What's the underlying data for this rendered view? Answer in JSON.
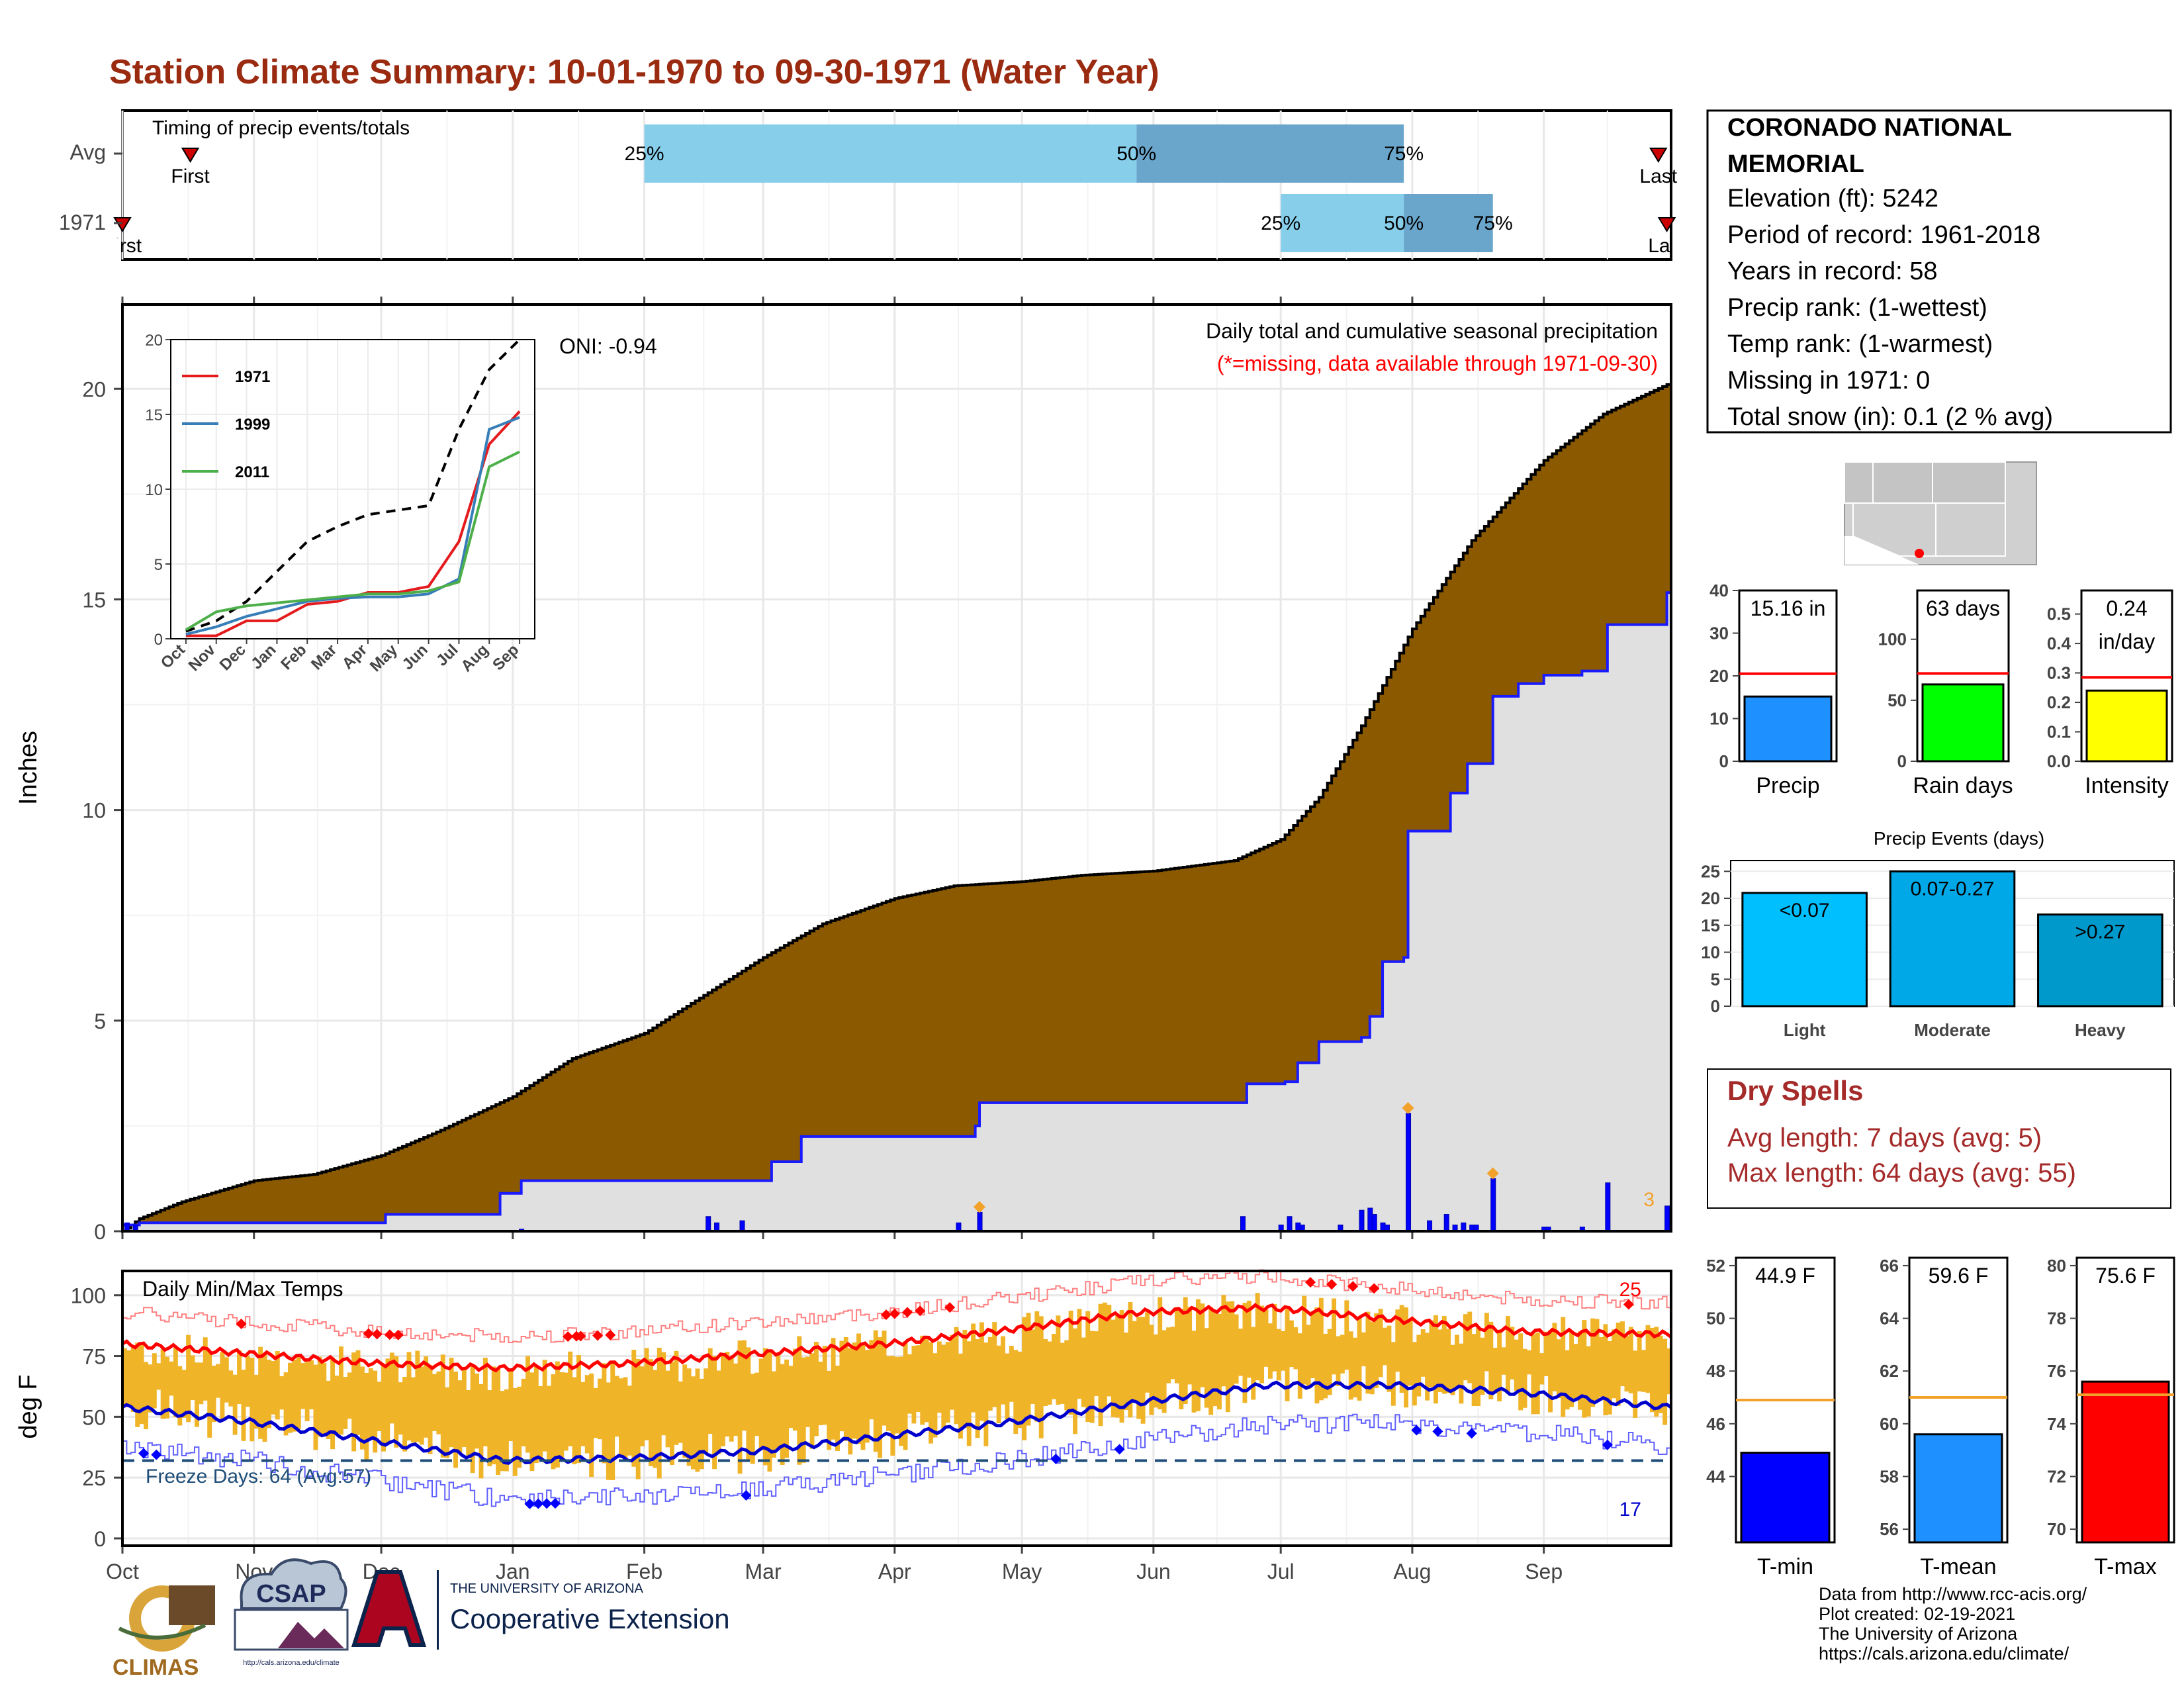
{
  "page": {
    "title": "Station Climate Summary: 10-01-1970 to 09-30-1971 (Water Year)",
    "title_color": "#9a2a10"
  },
  "months": [
    "Oct",
    "Nov",
    "Dec",
    "Jan",
    "Feb",
    "Mar",
    "Apr",
    "May",
    "Jun",
    "Jul",
    "Aug",
    "Sep"
  ],
  "timing": {
    "label": "Timing of precip events/totals",
    "rows": [
      {
        "name": "Avg",
        "first_date": "1970-10-17",
        "last_date": "1971-09-28",
        "first_label": "First",
        "last_label": "Last",
        "p25_date": "1971-02-01",
        "p50_date": "1971-05-28",
        "p75_date": "1971-07-30",
        "p25_label": "25%",
        "p50_label": "50%",
        "p75_label": "75%"
      },
      {
        "name": "1971",
        "first_date": "1970-10-01",
        "last_date": "1971-09-30",
        "first_label": "First",
        "last_label": "Last",
        "p25_date": "1971-07-01",
        "p50_date": "1971-07-30",
        "p75_date": "1971-08-20",
        "p25_label": "25%",
        "p50_label": "50%",
        "p75_label": "75%"
      }
    ],
    "colors": {
      "light": "#87ceeb",
      "dark": "#6aa6cc",
      "marker": "#cc0000"
    }
  },
  "chart_data": [
    {
      "type": "area",
      "panel": "precip",
      "title": "Daily total and cumulative seasonal precipitation",
      "subtitle": "(*=missing, data available through 1971-09-30)",
      "ylabel": "Inches",
      "ylim": [
        0,
        22
      ],
      "yticks": [
        0,
        5,
        10,
        15,
        20
      ],
      "oni_label": "ONI: -0.94",
      "extreme_count_label": "3",
      "series": [
        {
          "name": "Average cumulative",
          "color": "#8b5a00",
          "points": [
            [
              "1970-10-01",
              0
            ],
            [
              "1970-10-05",
              0.3
            ],
            [
              "1970-10-15",
              0.7
            ],
            [
              "1970-11-01",
              1.2
            ],
            [
              "1970-11-15",
              1.35
            ],
            [
              "1970-12-01",
              1.8
            ],
            [
              "1970-12-15",
              2.4
            ],
            [
              "1971-01-01",
              3.2
            ],
            [
              "1971-01-15",
              4.1
            ],
            [
              "1971-02-01",
              4.7
            ],
            [
              "1971-02-15",
              5.6
            ],
            [
              "1971-03-01",
              6.5
            ],
            [
              "1971-03-15",
              7.3
            ],
            [
              "1971-04-01",
              7.9
            ],
            [
              "1971-04-15",
              8.2
            ],
            [
              "1971-05-01",
              8.3
            ],
            [
              "1971-05-15",
              8.45
            ],
            [
              "1971-06-01",
              8.55
            ],
            [
              "1971-06-20",
              8.8
            ],
            [
              "1971-07-01",
              9.3
            ],
            [
              "1971-07-10",
              10.3
            ],
            [
              "1971-07-20",
              12.0
            ],
            [
              "1971-08-01",
              14.3
            ],
            [
              "1971-08-15",
              16.4
            ],
            [
              "1971-09-01",
              18.3
            ],
            [
              "1971-09-15",
              19.4
            ],
            [
              "1971-09-30",
              20.1
            ]
          ]
        },
        {
          "name": "1971 cumulative",
          "color": "#1a1aff",
          "points": [
            [
              "1970-10-01",
              0.15
            ],
            [
              "1970-10-05",
              0.2
            ],
            [
              "1970-12-01",
              0.2
            ],
            [
              "1970-12-02",
              0.4
            ],
            [
              "1970-12-28",
              0.4
            ],
            [
              "1970-12-29",
              0.9
            ],
            [
              "1971-01-03",
              1.2
            ],
            [
              "1971-03-01",
              1.2
            ],
            [
              "1971-03-03",
              1.65
            ],
            [
              "1971-03-10",
              2.25
            ],
            [
              "1971-04-20",
              2.5
            ],
            [
              "1971-04-21",
              3.05
            ],
            [
              "1971-06-22",
              3.05
            ],
            [
              "1971-06-23",
              3.5
            ],
            [
              "1971-07-02",
              3.55
            ],
            [
              "1971-07-05",
              4.0
            ],
            [
              "1971-07-10",
              4.5
            ],
            [
              "1971-07-20",
              4.6
            ],
            [
              "1971-07-22",
              5.1
            ],
            [
              "1971-07-25",
              6.4
            ],
            [
              "1971-07-30",
              6.5
            ],
            [
              "1971-07-31",
              9.5
            ],
            [
              "1971-08-10",
              10.4
            ],
            [
              "1971-08-14",
              11.1
            ],
            [
              "1971-08-20",
              12.7
            ],
            [
              "1971-08-26",
              13.0
            ],
            [
              "1971-09-01",
              13.2
            ],
            [
              "1971-09-10",
              13.3
            ],
            [
              "1971-09-16",
              14.4
            ],
            [
              "1971-09-29",
              14.4
            ],
            [
              "1971-09-30",
              15.16
            ]
          ]
        }
      ],
      "daily_bars": [
        [
          "1970-10-02",
          0.2
        ],
        [
          "1970-10-04",
          0.15
        ],
        [
          "1971-01-03",
          0.05
        ],
        [
          "1971-02-16",
          0.35
        ],
        [
          "1971-02-18",
          0.2
        ],
        [
          "1971-02-24",
          0.25
        ],
        [
          "1971-04-16",
          0.2
        ],
        [
          "1971-04-21",
          0.45
        ],
        [
          "1971-06-22",
          0.35
        ],
        [
          "1971-07-01",
          0.15
        ],
        [
          "1971-07-03",
          0.35
        ],
        [
          "1971-07-05",
          0.2
        ],
        [
          "1971-07-06",
          0.15
        ],
        [
          "1971-07-15",
          0.15
        ],
        [
          "1971-07-20",
          0.5
        ],
        [
          "1971-07-22",
          0.55
        ],
        [
          "1971-07-23",
          0.4
        ],
        [
          "1971-07-25",
          0.2
        ],
        [
          "1971-07-26",
          0.15
        ],
        [
          "1971-07-31",
          2.8
        ],
        [
          "1971-08-05",
          0.25
        ],
        [
          "1971-08-09",
          0.4
        ],
        [
          "1971-08-11",
          0.15
        ],
        [
          "1971-08-13",
          0.2
        ],
        [
          "1971-08-15",
          0.15
        ],
        [
          "1971-08-16",
          0.15
        ],
        [
          "1971-08-20",
          1.25
        ],
        [
          "1971-09-01",
          0.1
        ],
        [
          "1971-09-02",
          0.1
        ],
        [
          "1971-09-10",
          0.1
        ],
        [
          "1971-09-16",
          1.15
        ],
        [
          "1971-09-30",
          0.6
        ]
      ],
      "extreme_days": [
        [
          "1971-04-21",
          0.45
        ],
        [
          "1971-07-31",
          2.8
        ],
        [
          "1971-08-20",
          1.25
        ]
      ],
      "colors": {
        "bg_fill": "#e0e0e0",
        "extreme": "#f2a12a"
      }
    },
    {
      "type": "line",
      "panel": "inset",
      "categories": [
        "Oct",
        "Nov",
        "Dec",
        "Jan",
        "Feb",
        "Mar",
        "Apr",
        "May",
        "Jun",
        "Jul",
        "Aug",
        "Sep"
      ],
      "ylim": [
        0,
        20
      ],
      "yticks": [
        0,
        5,
        10,
        15,
        20
      ],
      "series": [
        {
          "name": "",
          "color": "#000000",
          "dash": true,
          "values": [
            0.5,
            1.2,
            2.5,
            4.5,
            6.5,
            7.5,
            8.3,
            8.6,
            8.9,
            14.0,
            18.0,
            20.0
          ]
        },
        {
          "name": "1971",
          "color": "#e41a1c",
          "values": [
            0.2,
            0.2,
            1.2,
            1.2,
            2.3,
            2.5,
            3.1,
            3.1,
            3.5,
            6.5,
            13.0,
            15.2
          ]
        },
        {
          "name": "1999",
          "color": "#377eb8",
          "values": [
            0.3,
            0.8,
            1.5,
            2.0,
            2.5,
            2.7,
            2.8,
            2.8,
            3.0,
            4.0,
            14.0,
            14.8
          ]
        },
        {
          "name": "2011",
          "color": "#4daf4a",
          "values": [
            0.6,
            1.8,
            2.2,
            2.4,
            2.6,
            2.8,
            3.0,
            3.0,
            3.2,
            3.8,
            11.5,
            12.5
          ]
        }
      ]
    },
    {
      "type": "bar",
      "panel": "temps",
      "title": "Daily Min/Max Temps",
      "ylabel": "deg F",
      "ylim": [
        -3,
        110
      ],
      "yticks": [
        0,
        25,
        50,
        75,
        100
      ],
      "freeze_label": "Freeze Days: 64 (Avg:57)",
      "freeze_line": 32,
      "max_extreme_count": "25",
      "min_extreme_count": "17",
      "avg_max": [
        [
          0,
          80
        ],
        [
          30,
          76
        ],
        [
          60,
          72
        ],
        [
          90,
          70
        ],
        [
          120,
          72
        ],
        [
          150,
          76
        ],
        [
          180,
          80
        ],
        [
          210,
          86
        ],
        [
          240,
          93
        ],
        [
          270,
          95
        ],
        [
          300,
          90
        ],
        [
          330,
          85
        ],
        [
          364,
          84
        ]
      ],
      "avg_min": [
        [
          0,
          54
        ],
        [
          30,
          48
        ],
        [
          60,
          40
        ],
        [
          90,
          32
        ],
        [
          120,
          33
        ],
        [
          150,
          36
        ],
        [
          180,
          42
        ],
        [
          210,
          48
        ],
        [
          240,
          56
        ],
        [
          270,
          63
        ],
        [
          300,
          63
        ],
        [
          330,
          60
        ],
        [
          364,
          54
        ]
      ],
      "colors": {
        "bars": "#f0b429",
        "max_line": "#ff0000",
        "min_line": "#0000cc",
        "record_max": "#ff8080",
        "record_min": "#6060ff",
        "freeze": "#1f4e79"
      }
    },
    {
      "type": "bar",
      "panel": "precip_total",
      "label": "Precip",
      "value": 15.16,
      "avg": 20.5,
      "value_label": "15.16 in",
      "ylim": [
        0,
        40
      ],
      "yticks": [
        0,
        10,
        20,
        30,
        40
      ],
      "color": "#1e90ff"
    },
    {
      "type": "bar",
      "panel": "rain_days",
      "label": "Rain days",
      "value": 63,
      "avg": 72,
      "value_label": "63 days",
      "ylim": [
        0,
        140
      ],
      "yticks": [
        0,
        50,
        100
      ],
      "color": "#00ff00"
    },
    {
      "type": "bar",
      "panel": "intensity",
      "label": "Intensity",
      "value": 0.24,
      "avg": 0.285,
      "value_label": "0.24",
      "value_label2": "in/day",
      "ylim": [
        0,
        0.58
      ],
      "yticks": [
        0.0,
        0.1,
        0.2,
        0.3,
        0.4,
        0.5
      ],
      "color": "#ffff00"
    },
    {
      "type": "bar",
      "panel": "precip_events",
      "title": "Precip Events (days)",
      "categories": [
        "Light",
        "Moderate",
        "Heavy"
      ],
      "values": [
        21,
        25,
        17
      ],
      "labels": [
        "<0.07",
        "0.07-0.27",
        ">0.27"
      ],
      "ylim": [
        0,
        27
      ],
      "yticks": [
        0,
        5,
        10,
        15,
        20,
        25
      ],
      "colors": [
        "#00bfff",
        "#00a8e8",
        "#0099cc"
      ]
    },
    {
      "type": "bar",
      "panel": "tmin",
      "label": "T-min",
      "value": 44.9,
      "avg": 46.9,
      "value_label": "44.9 F",
      "ylim": [
        41.5,
        52.3
      ],
      "yticks": [
        44,
        46,
        48,
        50,
        52
      ],
      "color": "#0000ff"
    },
    {
      "type": "bar",
      "panel": "tmean",
      "label": "T-mean",
      "value": 59.6,
      "avg": 61.0,
      "value_label": "59.6 F",
      "ylim": [
        55.5,
        66.3
      ],
      "yticks": [
        56,
        58,
        60,
        62,
        64,
        66
      ],
      "color": "#1e90ff"
    },
    {
      "type": "bar",
      "panel": "tmax",
      "label": "T-max",
      "value": 75.6,
      "avg": 75.1,
      "value_label": "75.6 F",
      "ylim": [
        69.5,
        80.3
      ],
      "yticks": [
        70,
        72,
        74,
        76,
        78,
        80
      ],
      "color": "#ff0000"
    }
  ],
  "station": {
    "name_line1": "CORONADO NATIONAL",
    "name_line2": "MEMORIAL",
    "lines": [
      "Elevation (ft): 5242",
      "Period of record: 1961-2018",
      "Years in record: 58",
      "Precip rank:  (1-wettest)",
      "Temp rank:  (1-warmest)",
      "Missing in 1971: 0",
      "Total snow (in): 0.1 (2 % avg)"
    ]
  },
  "dry_spells": {
    "title": "Dry Spells",
    "lines": [
      "Avg length: 7 days (avg: 5)",
      "Max length: 64 days (avg: 55)"
    ],
    "color": "#a52a2a"
  },
  "footer": {
    "lines": [
      "Data from http://www.rcc-acis.org/",
      "Plot created: 02-19-2021",
      "The University of Arizona",
      "https://cals.arizona.edu/climate/"
    ],
    "logos": {
      "climas": "CLIMAS",
      "csap": "CSAP",
      "csap_url": "http://cals.arizona.edu/climate",
      "ua_small": "THE UNIVERSITY OF ARIZONA",
      "ua_big": "Cooperative Extension"
    }
  }
}
